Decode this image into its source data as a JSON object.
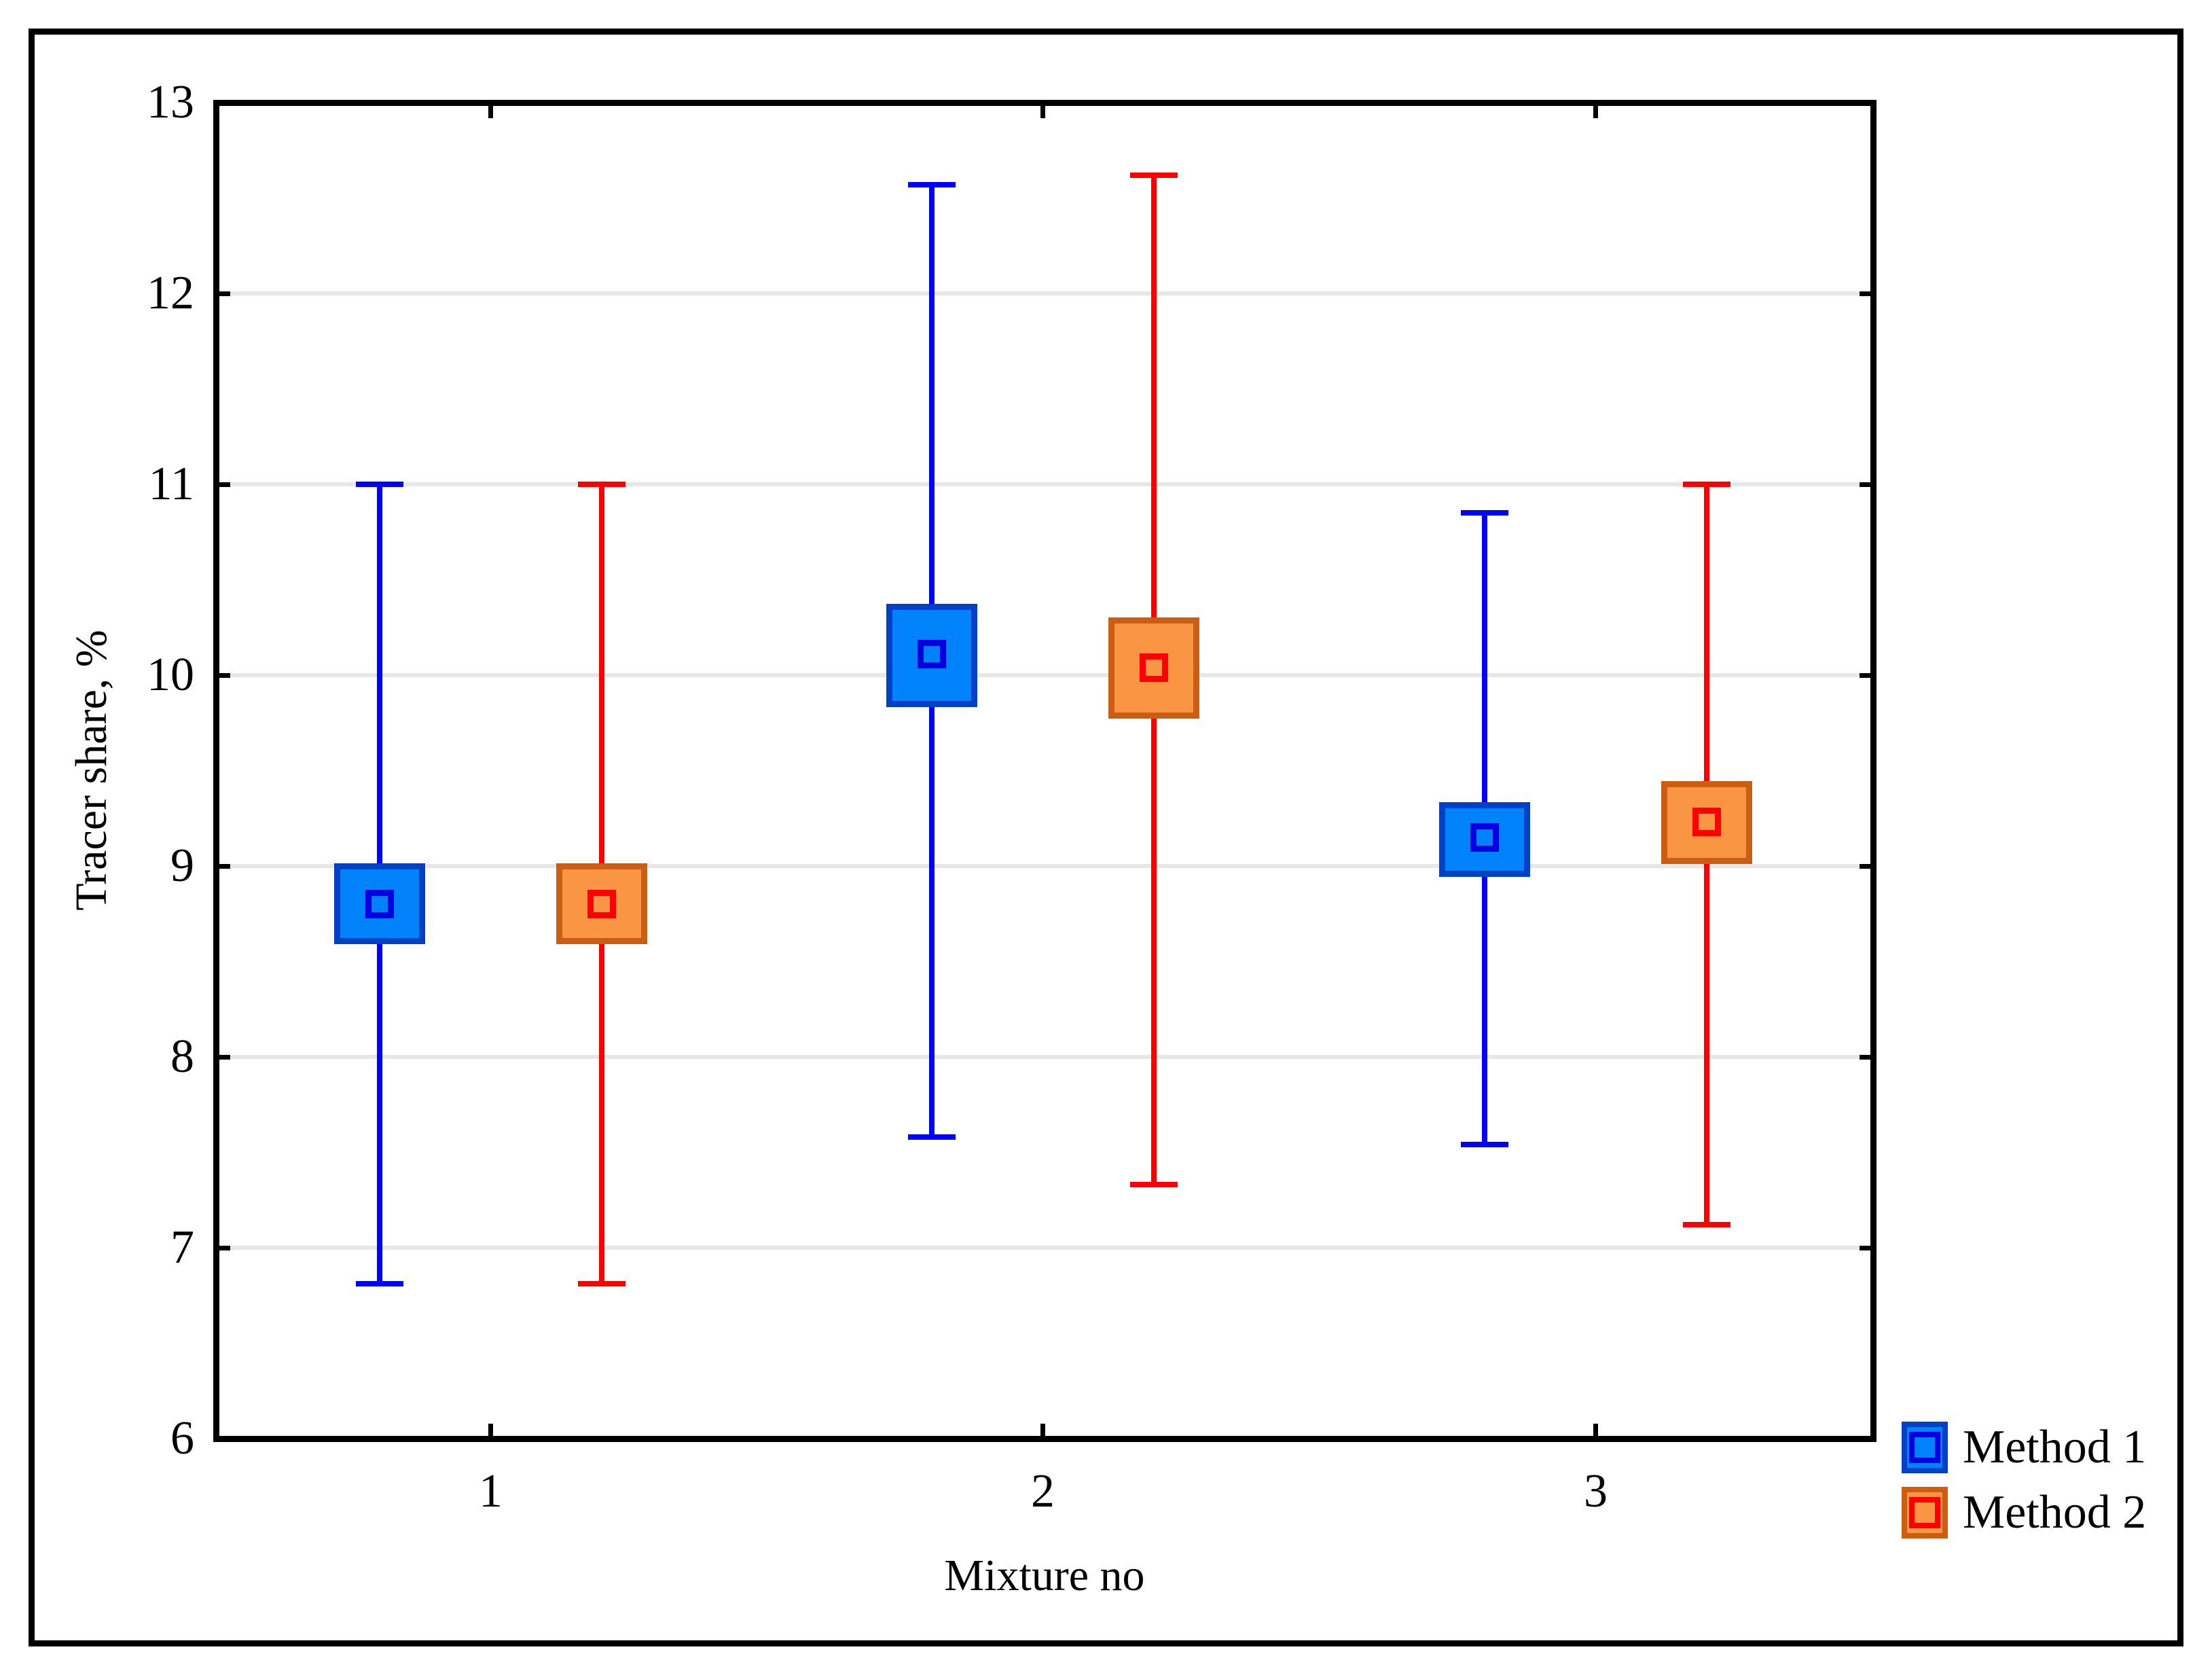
{
  "chart_data": {
    "type": "box",
    "title": "",
    "xlabel": "Mixture no",
    "ylabel": "Tracer share, %",
    "ylim": [
      6,
      13
    ],
    "yticks": [
      "6",
      "7",
      "8",
      "9",
      "10",
      "11",
      "12",
      "13"
    ],
    "categories": [
      "1",
      "2",
      "3"
    ],
    "grid": "horizontal",
    "legend_position": "bottom-right",
    "frame_color": "#000000",
    "gridline_color": "#e7e7e7",
    "series": [
      {
        "name": "Method 1",
        "fill_color": "#0082FA",
        "border_color": "#0041C8",
        "whisker_color": "#0000FF",
        "marker_color": "#0000E0",
        "boxes": [
          {
            "category": "1",
            "whisker_low": 6.81,
            "q1": 8.61,
            "mean": 8.8,
            "q3": 9.0,
            "whisker_high": 11.0
          },
          {
            "category": "2",
            "whisker_low": 7.58,
            "q1": 9.85,
            "mean": 10.11,
            "q3": 10.36,
            "whisker_high": 12.57
          },
          {
            "category": "3",
            "whisker_low": 7.54,
            "q1": 8.96,
            "mean": 9.15,
            "q3": 9.32,
            "whisker_high": 10.85
          }
        ]
      },
      {
        "name": "Method 2",
        "fill_color": "#FA9643",
        "border_color": "#CC5E14",
        "whisker_color": "#FF0000",
        "marker_color": "#FF0000",
        "boxes": [
          {
            "category": "1",
            "whisker_low": 6.81,
            "q1": 8.61,
            "mean": 8.8,
            "q3": 9.0,
            "whisker_high": 11.0
          },
          {
            "category": "2",
            "whisker_low": 7.33,
            "q1": 9.79,
            "mean": 10.04,
            "q3": 10.29,
            "whisker_high": 12.62
          },
          {
            "category": "3",
            "whisker_low": 7.12,
            "q1": 9.03,
            "mean": 9.23,
            "q3": 9.43,
            "whisker_high": 11.0
          }
        ]
      }
    ]
  }
}
